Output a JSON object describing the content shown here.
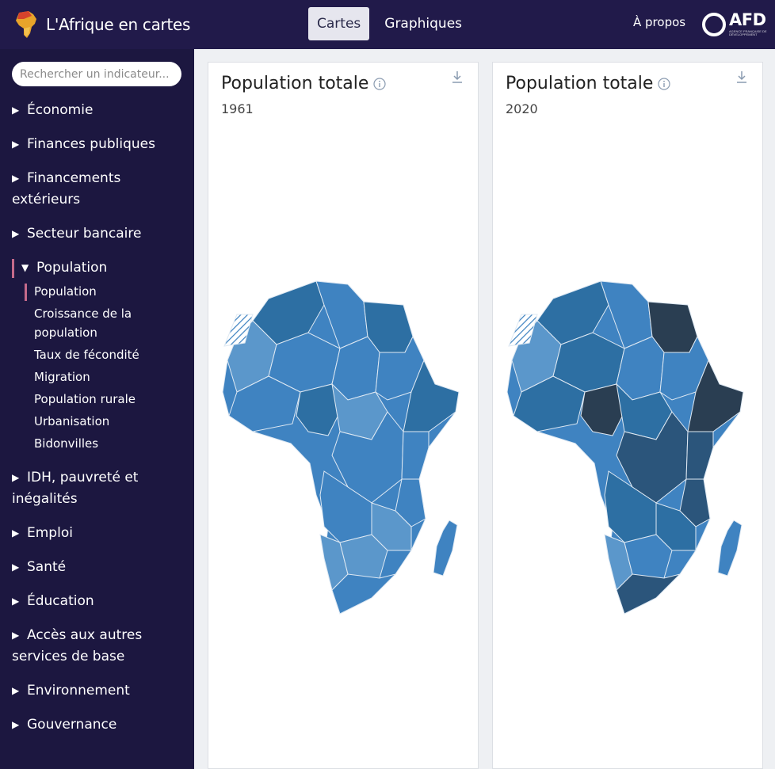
{
  "header": {
    "app_title": "L'Afrique en cartes",
    "tabs": [
      {
        "label": "Cartes",
        "active": true
      },
      {
        "label": "Graphiques",
        "active": false
      }
    ],
    "about_label": "À propos",
    "logo_text": "AFD",
    "logo_subtext": "AGENCE FRANÇAISE DE DÉVELOPPEMENT"
  },
  "sidebar": {
    "search_placeholder": "Rechercher un indicateur...",
    "categories": [
      {
        "label": "Économie"
      },
      {
        "label": "Finances publiques"
      },
      {
        "label": "Financements extérieurs"
      },
      {
        "label": "Secteur bancaire"
      },
      {
        "label": "Population",
        "open": true,
        "items": [
          {
            "label": "Population",
            "active": true
          },
          {
            "label": "Croissance de la population"
          },
          {
            "label": "Taux de fécondité"
          },
          {
            "label": "Migration"
          },
          {
            "label": "Population rurale"
          },
          {
            "label": "Urbanisation"
          },
          {
            "label": "Bidonvilles"
          }
        ]
      },
      {
        "label": "IDH, pauvreté et inégalités"
      },
      {
        "label": "Emploi"
      },
      {
        "label": "Santé"
      },
      {
        "label": "Éducation"
      },
      {
        "label": "Accès aux autres services de base"
      },
      {
        "label": "Environnement"
      },
      {
        "label": "Gouvernance"
      }
    ]
  },
  "cards": [
    {
      "title": "Population totale",
      "year": "1961"
    },
    {
      "title": "Population totale",
      "year": "2020"
    }
  ],
  "colors": {
    "header_bg": "#211a4a",
    "sidebar_bg": "#1c1740",
    "accent_bar": "#c56a8b",
    "map_light": "#5b97cb",
    "map_mid": "#3f83c1",
    "map_dark": "#2d6fa3",
    "map_darker": "#2b557b",
    "map_darkest": "#2a3e52"
  },
  "icons": {
    "brand": "africa-logo-icon",
    "info": "info-icon",
    "download": "download-icon",
    "collapsed": "triangle-right-icon",
    "expanded": "triangle-down-icon"
  }
}
